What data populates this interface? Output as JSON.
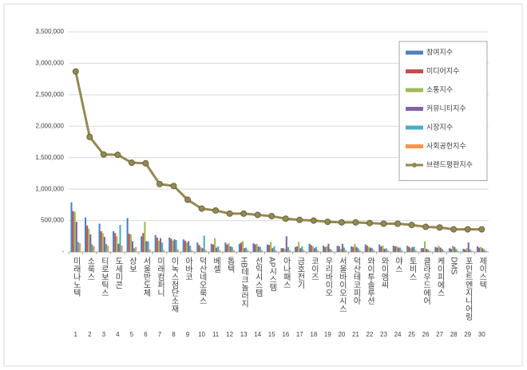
{
  "chart_data": {
    "type": "bar",
    "categories": [
      "미래나노텍",
      "소룩스",
      "티로보틱스",
      "도세미콘",
      "상보",
      "서울반도체",
      "미래컴퍼니",
      "이녹스첨단소재",
      "아바코",
      "덕산네오룩스",
      "베셀",
      "톱텍",
      "HB테크놀러지",
      "선익시스템",
      "AP시스템",
      "아나패스",
      "금호전기",
      "코이즈",
      "우리바이오",
      "서울바이오시스",
      "덕산테코피아",
      "와이투솔루션",
      "와이엠씨",
      "야스",
      "토비스",
      "클라우드에어",
      "케이피에스",
      "DMS",
      "포인트엔지니어링",
      "제이스텍"
    ],
    "ranks": [
      1,
      2,
      3,
      4,
      5,
      6,
      7,
      8,
      9,
      10,
      11,
      12,
      13,
      14,
      15,
      16,
      17,
      18,
      19,
      20,
      21,
      22,
      23,
      24,
      25,
      26,
      27,
      28,
      29,
      30
    ],
    "series": [
      {
        "name": "참여지수",
        "color": "#4f81bd",
        "values": [
          790000,
          550000,
          450000,
          330000,
          540000,
          250000,
          270000,
          230000,
          200000,
          150000,
          130000,
          150000,
          130000,
          140000,
          120000,
          60000,
          80000,
          130000,
          100000,
          100000,
          90000,
          120000,
          120000,
          100000,
          100000,
          60000,
          80000,
          60000,
          50000,
          90000
        ]
      },
      {
        "name": "미디어지수",
        "color": "#c0504d",
        "values": [
          650000,
          420000,
          330000,
          300000,
          290000,
          300000,
          230000,
          210000,
          180000,
          110000,
          120000,
          120000,
          150000,
          120000,
          110000,
          60000,
          90000,
          110000,
          80000,
          90000,
          80000,
          100000,
          90000,
          90000,
          80000,
          60000,
          70000,
          50000,
          40000,
          70000
        ]
      },
      {
        "name": "소통지수",
        "color": "#9bbb59",
        "values": [
          640000,
          370000,
          300000,
          250000,
          280000,
          480000,
          180000,
          180000,
          150000,
          80000,
          220000,
          140000,
          170000,
          130000,
          160000,
          50000,
          160000,
          90000,
          90000,
          50000,
          130000,
          80000,
          100000,
          90000,
          60000,
          170000,
          100000,
          100000,
          60000,
          80000
        ]
      },
      {
        "name": "커뮤니티지수",
        "color": "#8064a2",
        "values": [
          480000,
          280000,
          240000,
          130000,
          170000,
          170000,
          220000,
          200000,
          170000,
          60000,
          70000,
          90000,
          60000,
          90000,
          60000,
          250000,
          60000,
          60000,
          130000,
          130000,
          80000,
          70000,
          50000,
          70000,
          80000,
          50000,
          70000,
          80000,
          150000,
          60000
        ]
      },
      {
        "name": "시장지수",
        "color": "#4bacc6",
        "values": [
          160000,
          120000,
          130000,
          430000,
          60000,
          170000,
          150000,
          190000,
          100000,
          260000,
          90000,
          80000,
          70000,
          80000,
          90000,
          80000,
          90000,
          80000,
          50000,
          70000,
          60000,
          60000,
          60000,
          70000,
          80000,
          40000,
          50000,
          50000,
          40000,
          40000
        ]
      },
      {
        "name": "사회공헌지수",
        "color": "#f79646",
        "values": [
          140000,
          90000,
          100000,
          100000,
          80000,
          40000,
          30000,
          40000,
          30000,
          30000,
          30000,
          30000,
          30000,
          30000,
          30000,
          30000,
          30000,
          30000,
          30000,
          30000,
          30000,
          30000,
          30000,
          30000,
          30000,
          20000,
          20000,
          20000,
          20000,
          20000
        ]
      },
      {
        "name": "브랜드평판지수",
        "color": "#938953",
        "type": "line",
        "values": [
          2870000,
          1830000,
          1550000,
          1545000,
          1420000,
          1410000,
          1080000,
          1050000,
          830000,
          690000,
          660000,
          610000,
          610000,
          590000,
          570000,
          530000,
          510000,
          500000,
          480000,
          470000,
          470000,
          460000,
          450000,
          450000,
          430000,
          400000,
          390000,
          360000,
          360000,
          360000
        ]
      }
    ],
    "ylim": [
      0,
      3500000
    ],
    "yticks": [
      {
        "value": 0,
        "label": "-"
      },
      {
        "value": 500000,
        "label": "500,000"
      },
      {
        "value": 1000000,
        "label": "1,000,000"
      },
      {
        "value": 1500000,
        "label": "1,500,000"
      },
      {
        "value": 2000000,
        "label": "2,000,000"
      },
      {
        "value": 2500000,
        "label": "2,500,000"
      },
      {
        "value": 3000000,
        "label": "3,000,000"
      },
      {
        "value": 3500000,
        "label": "3,500,000"
      }
    ],
    "grid": true,
    "legend": "top-right"
  }
}
